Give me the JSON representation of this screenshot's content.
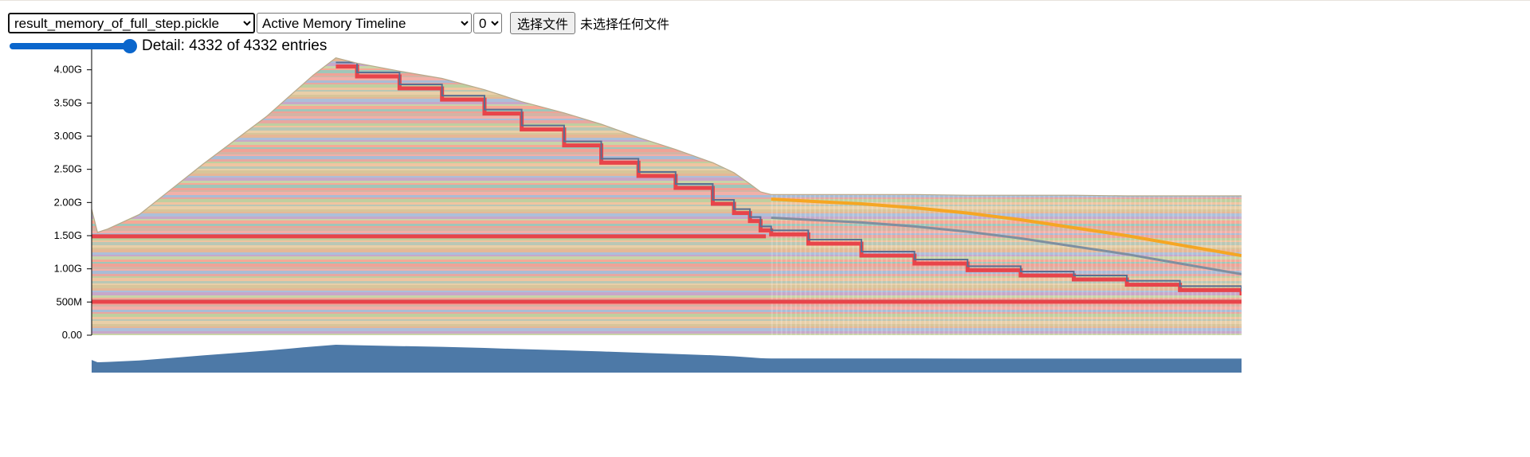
{
  "toolbar": {
    "file_options": [
      "result_memory_of_full_step.pickle"
    ],
    "file_selected": "result_memory_of_full_step.pickle",
    "view_options": [
      "Active Memory Timeline"
    ],
    "view_selected": "Active Memory Timeline",
    "rank_options": [
      "0"
    ],
    "rank_selected": "0",
    "choose_file_label": "选择文件",
    "no_file_label": "未选择任何文件"
  },
  "detail": {
    "label": "Detail: 4332 of 4332 entries",
    "value": 4332,
    "max": 4332
  },
  "chart_data": {
    "type": "area",
    "stacked": true,
    "ylabel": "",
    "xlabel": "",
    "yticks": [
      "0.00",
      "500M",
      "1.00G",
      "1.50G",
      "2.00G",
      "2.50G",
      "3.00G",
      "3.50G",
      "4.00G"
    ],
    "ylim": [
      0,
      4.2
    ],
    "y_unit": "GB",
    "x_range": [
      0,
      4332
    ],
    "total_memory": {
      "x": [
        0,
        22,
        60,
        180,
        300,
        420,
        540,
        660,
        750,
        835,
        920,
        1000,
        1160,
        1320,
        1480,
        1620,
        1780,
        1920,
        2060,
        2200,
        2340,
        2420,
        2480,
        2520,
        2540,
        2560,
        2700,
        2900,
        3100,
        3300,
        3500,
        3700,
        3900,
        4100,
        4332
      ],
      "y": [
        1.9,
        1.55,
        1.6,
        1.82,
        2.2,
        2.58,
        2.94,
        3.3,
        3.62,
        3.92,
        4.18,
        4.1,
        3.98,
        3.87,
        3.7,
        3.52,
        3.35,
        3.18,
        2.98,
        2.8,
        2.6,
        2.45,
        2.28,
        2.16,
        2.14,
        2.12,
        2.12,
        2.12,
        2.12,
        2.11,
        2.11,
        2.11,
        2.1,
        2.1,
        2.1
      ]
    },
    "red_band_base": {
      "x": [
        0,
        22,
        920,
        1000,
        1160,
        1320,
        1480,
        1620,
        1780,
        1920,
        2060,
        2200,
        2340,
        2420,
        2480,
        2520,
        2560,
        2700,
        2900,
        3100,
        3300,
        3500,
        3700,
        3900,
        4100,
        4332
      ],
      "y": [
        1.48,
        1.48,
        1.48,
        1.48,
        1.48,
        1.48,
        1.48,
        1.48,
        1.48,
        1.48,
        1.48,
        1.48,
        1.48,
        1.48,
        1.48,
        1.48,
        1.44,
        1.3,
        1.1,
        0.98,
        0.88,
        0.8,
        0.74,
        0.66,
        0.58,
        0.52
      ]
    },
    "red_band_top": {
      "x": [
        0,
        22,
        920,
        1000,
        1160,
        1320,
        1480,
        1620,
        1780,
        1920,
        2060,
        2200,
        2340,
        2420,
        2480,
        2520,
        2560,
        2700,
        2900,
        3100,
        3300,
        3500,
        3700,
        3900,
        4100,
        4332
      ],
      "y": [
        1.52,
        1.52,
        4.05,
        3.9,
        3.72,
        3.55,
        3.34,
        3.1,
        2.86,
        2.6,
        2.4,
        2.22,
        1.98,
        1.84,
        1.72,
        1.58,
        1.52,
        1.38,
        1.2,
        1.08,
        0.98,
        0.9,
        0.84,
        0.76,
        0.68,
        0.6
      ]
    },
    "orange_band_top": {
      "x": [
        2560,
        2700,
        2900,
        3100,
        3300,
        3500,
        3700,
        3900,
        4100,
        4332
      ],
      "y": [
        2.05,
        2.02,
        1.98,
        1.92,
        1.84,
        1.74,
        1.62,
        1.5,
        1.36,
        1.2
      ]
    },
    "colors": {
      "palette": [
        "#e8a7a0",
        "#b9c7b5",
        "#e5b796",
        "#c9d4a8",
        "#efa397",
        "#a9bcd5",
        "#f0c4a0",
        "#d8c59a",
        "#c7a8c9",
        "#9fc6b9",
        "#f2b0a8",
        "#bfcfa0",
        "#e9cfa8",
        "#adbfd9",
        "#f5a996",
        "#d3b4a5"
      ],
      "red_band": "#e8444a",
      "blue_line": "#5a6f92",
      "orange_band": "#f5a623",
      "overview_fill": "#4d79a7",
      "axis": "#000000"
    }
  }
}
